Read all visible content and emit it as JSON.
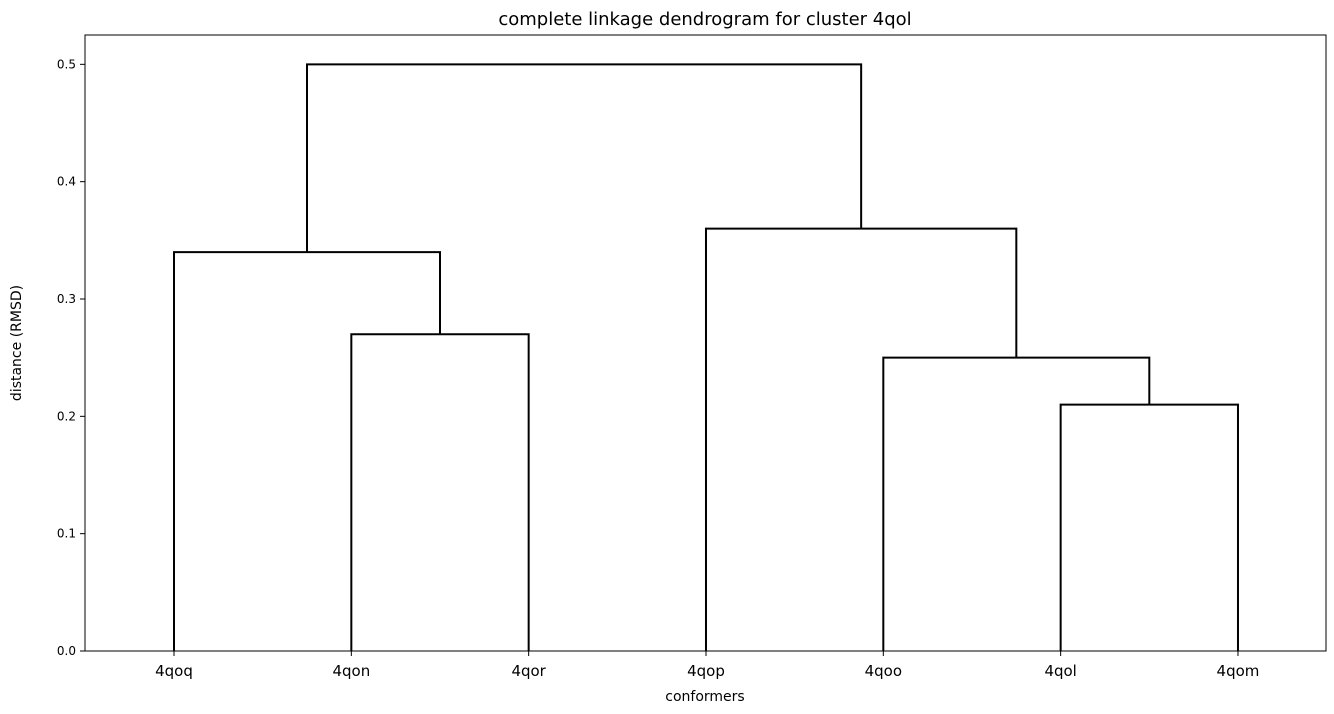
{
  "chart_data": {
    "type": "dendrogram",
    "title": "complete linkage dendrogram for cluster 4qol",
    "xlabel": "conformers",
    "ylabel": "distance (RMSD)",
    "ylim": [
      0,
      0.525
    ],
    "yticks": [
      "0.0",
      "0.1",
      "0.2",
      "0.3",
      "0.4",
      "0.5"
    ],
    "leaves": [
      "4qoq",
      "4qon",
      "4qor",
      "4qop",
      "4qoo",
      "4qol",
      "4qom"
    ],
    "merges": [
      {
        "left": "4qol",
        "right": "4qom",
        "height": 0.21
      },
      {
        "left": "4qoo",
        "right": "(4qol, 4qom)",
        "height": 0.25
      },
      {
        "left": "4qon",
        "right": "4qor",
        "height": 0.27
      },
      {
        "left": "4qoq",
        "right": "(4qon, 4qor)",
        "height": 0.34
      },
      {
        "left": "4qop",
        "right": "(4qoo, 4qol, 4qom)",
        "height": 0.36
      },
      {
        "left": "(4qoq, 4qon, 4qor)",
        "right": "(4qop, 4qoo, 4qol, 4qom)",
        "height": 0.5
      }
    ],
    "line_color": "#000000",
    "grid": false
  }
}
